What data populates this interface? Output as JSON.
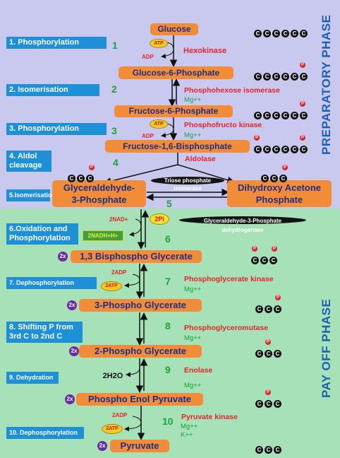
{
  "phases": {
    "preparatory": "PREPARATORY PHASE",
    "payoff": "PAY OFF PHASE"
  },
  "steps": [
    {
      "label": "1. Phosphorylation"
    },
    {
      "label": "2. Isomerisation"
    },
    {
      "label": "3. Phosphorylation"
    },
    {
      "label": "4. Aldol cleavage"
    },
    {
      "label": "5.Isomerisation"
    },
    {
      "label": "6.Oxidation and Phosphorylation"
    },
    {
      "label": "7. Dephosphorylation"
    },
    {
      "label": "8. Shifting P from 3rd C to 2nd C"
    },
    {
      "label": "9. Dehydration"
    },
    {
      "label": "10. Dephosphorylation"
    }
  ],
  "metabolites": {
    "glucose": "Glucose",
    "g6p": "Glucose-6-Phosphate",
    "f6p": "Fructose-6-Phosphate",
    "f16bp": "Fructose-1,6-Bisphosphate",
    "g3p_line1": "Glyceraldehyde-",
    "g3p_line2": "3-Phosphate",
    "dhap_line1": "Dihydroxy Acetone",
    "dhap_line2": "Phosphate",
    "bpg13": "1,3 Bisphospho Glycerate",
    "pg3": "3-Phospho Glycerate",
    "pg2": "2-Phospho Glycerate",
    "pep": "Phospho Enol Pyruvate",
    "pyruvate": "Pyruvate"
  },
  "enzymes": {
    "e1": "Hexokinase",
    "e2": "Phosphohexose isomerase",
    "e3": "Phosphofructo kinase",
    "e4": "Aldolase",
    "e5_line1": "Triose phosphate",
    "e5_line2": "isomerase",
    "e6_line1": "Glyceraldehyde-3-Phosphate",
    "e6_line2": "dehydrogenase",
    "e7": "Phosphoglycerate kinase",
    "e8": "Phosphoglyceromutase",
    "e9": "Enolase",
    "e10": "Pyruvate kinase"
  },
  "cofactors": {
    "mg": "Mg++",
    "k": "K++"
  },
  "labels": {
    "atp": "ATP",
    "adp": "ADP",
    "twoadp": "2ADP",
    "twoatp": "2ATP",
    "twonad": "2NAD+",
    "twonadh": "2NADH+H+",
    "twopi": "2Pi",
    "h2o": "2H2O",
    "two_x": "2x",
    "c": "C",
    "p": "P"
  },
  "numbers": {
    "n1": "1",
    "n2": "2",
    "n3": "3",
    "n4": "4",
    "n5": "5",
    "n6": "6",
    "n7": "7",
    "n8": "8",
    "n9": "9",
    "n10": "10"
  },
  "colors": {
    "prep_bg": "#c9c9ef",
    "payoff_bg": "#a6e1b8",
    "metabolite": "#f28c38",
    "enzyme": "#e3242b",
    "step_box": "#1e90d8",
    "number": "#19a538"
  }
}
